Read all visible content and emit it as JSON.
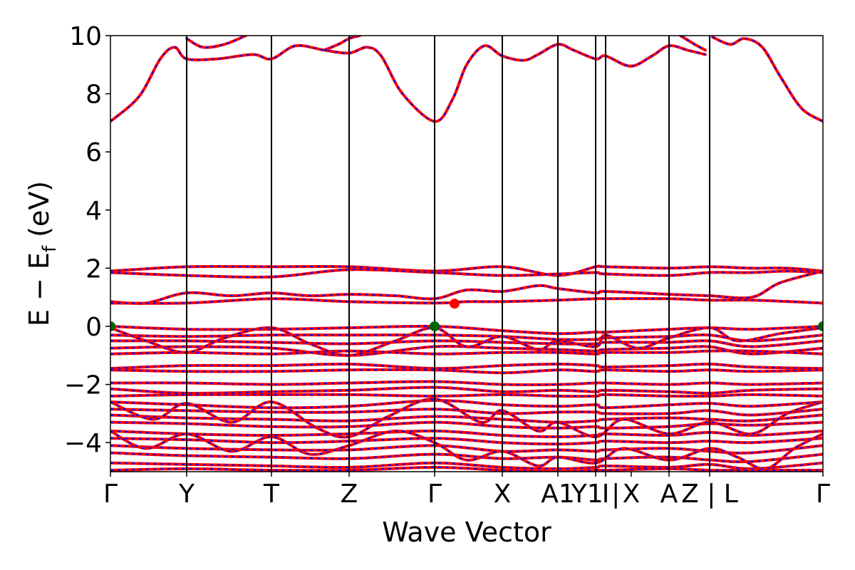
{
  "chart_data": {
    "type": "line",
    "title": "",
    "xlabel": "Wave Vector",
    "ylabel": "E − E_f (eV)",
    "ylabel_parts": {
      "main": "E − E",
      "sub": "f",
      "unit": " (eV)"
    },
    "ylim": [
      -5,
      10
    ],
    "yticks": [
      -4,
      -2,
      0,
      2,
      4,
      6,
      8,
      10
    ],
    "ytick_labels": [
      "−4",
      "−2",
      "0",
      "2",
      "4",
      "6",
      "8",
      "10"
    ],
    "grid": false,
    "legend": "none",
    "x_range": [
      0,
      1
    ],
    "kpoints": [
      {
        "label": "Γ",
        "x": 0.0
      },
      {
        "label": "Y",
        "x": 0.107
      },
      {
        "label": "T",
        "x": 0.226
      },
      {
        "label": "Z",
        "x": 0.335
      },
      {
        "label": "Γ",
        "x": 0.455
      },
      {
        "label": "X",
        "x": 0.55
      },
      {
        "label": "A1",
        "x": 0.628
      },
      {
        "label": "Y1 |",
        "x": 0.681
      },
      {
        "label": "I",
        "x": 0.695
      },
      {
        "label": "X",
        "x": 0.731
      },
      {
        "label": "A",
        "x": 0.784
      },
      {
        "label": "Z | L",
        "x": 0.841
      },
      {
        "label": "Γ",
        "x": 1.0
      }
    ],
    "kpoint_lines_x": [
      0.107,
      0.226,
      0.335,
      0.455,
      0.55,
      0.628,
      0.681,
      0.695,
      0.784,
      0.841
    ],
    "colors": {
      "band": "#ff0000",
      "band_dash": "#0000ff",
      "vbm": "#006400",
      "cbm": "#ff0000",
      "kline": "#000000"
    },
    "special_points": [
      {
        "name": "VBM",
        "x": 0.0,
        "y": 0.0,
        "color": "#006400"
      },
      {
        "name": "VBM",
        "x": 0.455,
        "y": 0.0,
        "color": "#006400"
      },
      {
        "name": "VBM",
        "x": 1.0,
        "y": 0.0,
        "color": "#006400"
      },
      {
        "name": "CBM",
        "x": 0.483,
        "y": 0.78,
        "color": "#ff0000"
      }
    ],
    "series": [
      {
        "band": "c1",
        "x": [
          0.0,
          0.04,
          0.07,
          0.09,
          0.107,
          0.15,
          0.2,
          0.226,
          0.26,
          0.3,
          0.335,
          0.36,
          0.38,
          0.41,
          0.455,
          0.48,
          0.5,
          0.525,
          0.55,
          0.58,
          0.6,
          0.628,
          0.65,
          0.681,
          0.695,
          0.73,
          0.76,
          0.784,
          0.81,
          0.835
        ],
        "y": [
          7.05,
          7.9,
          9.2,
          9.6,
          9.2,
          9.2,
          9.35,
          9.2,
          9.65,
          9.5,
          9.4,
          9.6,
          9.3,
          8.0,
          7.05,
          7.8,
          9.0,
          9.65,
          9.3,
          9.15,
          9.35,
          9.7,
          9.5,
          9.2,
          9.3,
          8.95,
          9.3,
          9.65,
          9.5,
          9.35
        ]
      },
      {
        "band": "c1b",
        "x": [
          0.845,
          0.87,
          0.89,
          0.915,
          0.94,
          0.97,
          1.0
        ],
        "y": [
          9.95,
          9.7,
          9.9,
          9.6,
          8.6,
          7.5,
          7.05
        ]
      },
      {
        "band": "c2",
        "x": [
          0.107,
          0.13,
          0.16,
          0.19
        ],
        "y": [
          9.9,
          9.6,
          9.7,
          10.0
        ]
      },
      {
        "band": "c3",
        "x": [
          0.3,
          0.32,
          0.335,
          0.35
        ],
        "y": [
          9.5,
          9.7,
          9.9,
          10.0
        ]
      },
      {
        "band": "c4",
        "x": [
          0.8,
          0.82,
          0.835
        ],
        "y": [
          10.0,
          9.7,
          9.5
        ]
      },
      {
        "band": "v-upper-1",
        "x": [
          0.0,
          0.107,
          0.226,
          0.335,
          0.455,
          0.55,
          0.628,
          0.681,
          0.695,
          0.784,
          0.841,
          0.9,
          0.95,
          1.0
        ],
        "y": [
          1.9,
          2.05,
          2.05,
          2.05,
          1.9,
          2.05,
          1.75,
          2.05,
          2.05,
          2.0,
          2.05,
          2.0,
          2.0,
          1.9
        ]
      },
      {
        "band": "v-upper-2",
        "x": [
          0.0,
          0.107,
          0.226,
          0.335,
          0.455,
          0.55,
          0.628,
          0.681,
          0.695,
          0.784,
          0.841,
          0.9,
          0.95,
          1.0
        ],
        "y": [
          1.85,
          1.75,
          1.7,
          1.95,
          1.85,
          1.75,
          1.8,
          1.85,
          1.8,
          1.75,
          1.85,
          1.85,
          1.9,
          1.85
        ]
      },
      {
        "band": "v-upper-3",
        "x": [
          0.0,
          0.05,
          0.107,
          0.17,
          0.226,
          0.28,
          0.335,
          0.4,
          0.455,
          0.5,
          0.55,
          0.6,
          0.628,
          0.681,
          0.695,
          0.784,
          0.841,
          0.9,
          0.94,
          1.0
        ],
        "y": [
          0.85,
          0.8,
          1.15,
          1.05,
          1.15,
          1.05,
          1.1,
          1.05,
          0.95,
          1.25,
          1.2,
          1.4,
          1.3,
          1.15,
          1.2,
          1.1,
          1.05,
          1.0,
          1.5,
          1.9
        ]
      },
      {
        "band": "v-upper-4",
        "x": [
          0.0,
          0.107,
          0.226,
          0.335,
          0.455,
          0.5,
          0.55,
          0.628,
          0.681,
          0.695,
          0.784,
          0.841,
          0.9,
          1.0
        ],
        "y": [
          0.8,
          0.8,
          0.95,
          0.85,
          0.8,
          0.85,
          0.85,
          0.9,
          0.95,
          0.95,
          0.95,
          0.9,
          0.9,
          0.8
        ]
      },
      {
        "band": "v0",
        "x": [
          0.0,
          0.107,
          0.226,
          0.335,
          0.455,
          0.55,
          0.628,
          0.681,
          0.695,
          0.784,
          0.841,
          0.9,
          1.0
        ],
        "y": [
          0.0,
          -0.1,
          -0.1,
          -0.05,
          0.0,
          -0.15,
          -0.25,
          -0.2,
          -0.2,
          -0.1,
          -0.05,
          -0.1,
          0.0
        ]
      },
      {
        "band": "v1",
        "x": [
          0.0,
          0.107,
          0.226,
          0.335,
          0.455,
          0.55,
          0.628,
          0.681,
          0.695,
          0.784,
          0.841,
          0.9,
          1.0
        ],
        "y": [
          -0.3,
          -0.35,
          -0.3,
          -0.3,
          -0.3,
          -0.35,
          -0.45,
          -0.45,
          -0.4,
          -0.35,
          -0.3,
          -0.5,
          -0.3
        ]
      },
      {
        "band": "v2",
        "x": [
          0.0,
          0.107,
          0.226,
          0.335,
          0.455,
          0.55,
          0.628,
          0.681,
          0.695,
          0.784,
          0.841,
          0.9,
          1.0
        ],
        "y": [
          -0.5,
          -0.5,
          -0.55,
          -0.6,
          -0.5,
          -0.55,
          -0.6,
          -0.6,
          -0.55,
          -0.55,
          -0.5,
          -0.7,
          -0.5
        ]
      },
      {
        "band": "v3",
        "x": [
          0.0,
          0.107,
          0.226,
          0.335,
          0.455,
          0.55,
          0.628,
          0.681,
          0.695,
          0.784,
          0.841,
          0.9,
          1.0
        ],
        "y": [
          -0.75,
          -0.7,
          -0.75,
          -1.0,
          -0.7,
          -0.75,
          -0.8,
          -0.85,
          -0.8,
          -0.75,
          -0.7,
          -0.95,
          -0.75
        ]
      },
      {
        "band": "v4",
        "x": [
          0.0,
          0.107,
          0.226,
          0.335,
          0.455,
          0.55,
          0.628,
          0.681,
          0.695,
          0.784,
          0.841,
          0.9,
          1.0
        ],
        "y": [
          -0.95,
          -0.9,
          -0.95,
          -0.85,
          -0.95,
          -0.9,
          -0.9,
          -0.95,
          -0.9,
          -0.9,
          -0.85,
          -0.85,
          -0.95
        ]
      },
      {
        "band": "v5",
        "x": [
          0.0,
          0.107,
          0.226,
          0.335,
          0.455,
          0.55,
          0.628,
          0.681,
          0.695,
          0.784,
          0.841,
          0.9,
          1.0
        ],
        "y": [
          -1.45,
          -1.35,
          -1.35,
          -1.3,
          -1.45,
          -1.35,
          -1.3,
          -1.35,
          -1.4,
          -1.35,
          -1.3,
          -1.4,
          -1.45
        ]
      },
      {
        "band": "v6",
        "x": [
          0.0,
          0.107,
          0.226,
          0.335,
          0.455,
          0.55,
          0.628,
          0.681,
          0.695,
          0.784,
          0.841,
          0.9,
          1.0
        ],
        "y": [
          -1.5,
          -1.55,
          -1.55,
          -1.5,
          -1.5,
          -1.6,
          -1.5,
          -1.55,
          -1.5,
          -1.55,
          -1.5,
          -1.55,
          -1.5
        ]
      },
      {
        "band": "v7",
        "x": [
          0.0,
          0.107,
          0.226,
          0.335,
          0.455,
          0.55,
          0.628,
          0.681,
          0.695,
          0.784,
          0.841,
          0.9,
          1.0
        ],
        "y": [
          -1.95,
          -1.95,
          -2.0,
          -1.95,
          -1.9,
          -2.0,
          -2.0,
          -1.95,
          -1.95,
          -2.0,
          -1.95,
          -2.0,
          -1.95
        ]
      },
      {
        "band": "v8",
        "x": [
          0.0,
          0.107,
          0.226,
          0.335,
          0.455,
          0.55,
          0.628,
          0.681,
          0.695,
          0.784,
          0.841,
          0.9,
          1.0
        ],
        "y": [
          -2.15,
          -2.3,
          -2.25,
          -2.2,
          -2.1,
          -2.25,
          -2.2,
          -2.25,
          -2.2,
          -2.25,
          -2.3,
          -2.2,
          -2.15
        ]
      },
      {
        "band": "v9",
        "x": [
          0.0,
          0.107,
          0.226,
          0.335,
          0.455,
          0.55,
          0.628,
          0.681,
          0.695,
          0.784,
          0.841,
          0.9,
          1.0
        ],
        "y": [
          -2.4,
          -2.35,
          -2.35,
          -2.35,
          -2.4,
          -2.35,
          -2.4,
          -2.4,
          -2.35,
          -2.4,
          -2.4,
          -2.35,
          -2.4
        ]
      },
      {
        "band": "v10",
        "x": [
          0.0,
          0.107,
          0.226,
          0.335,
          0.455,
          0.55,
          0.628,
          0.681,
          0.695,
          0.784,
          0.841,
          0.9,
          1.0
        ],
        "y": [
          -2.6,
          -2.7,
          -2.8,
          -2.75,
          -2.55,
          -2.7,
          -2.75,
          -2.7,
          -2.8,
          -2.7,
          -2.65,
          -2.75,
          -2.6
        ]
      },
      {
        "band": "v11",
        "x": [
          0.0,
          0.107,
          0.226,
          0.335,
          0.455,
          0.55,
          0.628,
          0.681,
          0.695,
          0.784,
          0.841,
          0.9,
          1.0
        ],
        "y": [
          -2.85,
          -2.9,
          -2.95,
          -2.95,
          -2.85,
          -3.0,
          -2.95,
          -2.95,
          -3.0,
          -3.0,
          -2.9,
          -3.05,
          -2.85
        ]
      },
      {
        "band": "v12",
        "x": [
          0.0,
          0.107,
          0.226,
          0.335,
          0.455,
          0.55,
          0.628,
          0.681,
          0.695,
          0.784,
          0.841,
          0.9,
          1.0
        ],
        "y": [
          -3.05,
          -3.15,
          -3.2,
          -3.25,
          -3.1,
          -3.2,
          -3.3,
          -3.25,
          -3.2,
          -3.15,
          -3.2,
          -3.25,
          -3.05
        ]
      },
      {
        "band": "v13",
        "x": [
          0.0,
          0.107,
          0.226,
          0.335,
          0.455,
          0.55,
          0.628,
          0.681,
          0.695,
          0.784,
          0.841,
          0.9,
          1.0
        ],
        "y": [
          -3.3,
          -3.35,
          -3.45,
          -3.45,
          -3.3,
          -3.45,
          -3.5,
          -3.45,
          -3.5,
          -3.45,
          -3.35,
          -3.4,
          -3.3
        ]
      },
      {
        "band": "v14",
        "x": [
          0.0,
          0.107,
          0.226,
          0.335,
          0.455,
          0.55,
          0.628,
          0.681,
          0.695,
          0.784,
          0.841,
          0.9,
          1.0
        ],
        "y": [
          -3.6,
          -3.7,
          -3.75,
          -3.7,
          -3.6,
          -3.75,
          -3.8,
          -3.75,
          -3.7,
          -3.75,
          -3.65,
          -3.75,
          -3.6
        ]
      },
      {
        "band": "v15",
        "x": [
          0.0,
          0.107,
          0.226,
          0.335,
          0.455,
          0.55,
          0.628,
          0.681,
          0.695,
          0.784,
          0.841,
          0.9,
          1.0
        ],
        "y": [
          -3.85,
          -3.9,
          -4.0,
          -3.95,
          -3.85,
          -4.0,
          -4.05,
          -4.0,
          -3.95,
          -4.0,
          -3.95,
          -4.0,
          -3.85
        ]
      },
      {
        "band": "v16",
        "x": [
          0.0,
          0.107,
          0.226,
          0.335,
          0.455,
          0.55,
          0.628,
          0.681,
          0.695,
          0.784,
          0.841,
          0.9,
          1.0
        ],
        "y": [
          -4.1,
          -4.2,
          -4.25,
          -4.25,
          -4.1,
          -4.3,
          -4.25,
          -4.3,
          -4.25,
          -4.2,
          -4.3,
          -4.35,
          -4.1
        ]
      },
      {
        "band": "v17",
        "x": [
          0.0,
          0.107,
          0.226,
          0.335,
          0.455,
          0.55,
          0.628,
          0.681,
          0.695,
          0.784,
          0.841,
          0.9,
          1.0
        ],
        "y": [
          -4.35,
          -4.45,
          -4.5,
          -4.55,
          -4.4,
          -4.55,
          -4.5,
          -4.6,
          -4.55,
          -4.5,
          -4.6,
          -4.65,
          -4.4
        ]
      },
      {
        "band": "v18",
        "x": [
          0.0,
          0.107,
          0.226,
          0.335,
          0.455,
          0.55,
          0.628,
          0.681,
          0.695,
          0.784,
          0.841,
          0.9,
          1.0
        ],
        "y": [
          -4.7,
          -4.75,
          -4.8,
          -4.85,
          -4.7,
          -4.85,
          -4.9,
          -4.85,
          -4.8,
          -4.85,
          -4.75,
          -4.9,
          -4.7
        ]
      },
      {
        "band": "v19",
        "x": [
          0.0,
          0.107,
          0.226,
          0.335,
          0.455,
          0.55,
          0.628,
          0.681,
          0.695,
          0.784,
          0.841,
          0.9,
          1.0
        ],
        "y": [
          -4.95,
          -4.9,
          -4.95,
          -4.95,
          -4.85,
          -4.95,
          -5.0,
          -4.95,
          -4.95,
          -4.9,
          -4.95,
          -4.95,
          -4.95
        ]
      },
      {
        "band": "v-cross-1",
        "x": [
          0.0,
          0.05,
          0.107,
          0.16,
          0.226,
          0.28,
          0.335,
          0.4,
          0.455,
          0.5,
          0.55,
          0.6,
          0.628,
          0.681,
          0.695,
          0.74,
          0.784,
          0.841,
          0.88,
          0.94,
          1.0
        ],
        "y": [
          -0.05,
          -0.5,
          -0.9,
          -0.4,
          -0.05,
          -0.6,
          -1.0,
          -0.5,
          -0.05,
          -0.7,
          -0.35,
          -0.8,
          -0.5,
          -0.7,
          -0.3,
          -0.75,
          -0.4,
          -0.05,
          -0.5,
          -0.25,
          -0.05
        ]
      },
      {
        "band": "v-cross-2",
        "x": [
          0.0,
          0.06,
          0.107,
          0.17,
          0.226,
          0.29,
          0.335,
          0.39,
          0.455,
          0.52,
          0.55,
          0.6,
          0.628,
          0.681,
          0.72,
          0.784,
          0.841,
          0.9,
          0.95,
          1.0
        ],
        "y": [
          -2.6,
          -3.2,
          -2.65,
          -3.3,
          -2.6,
          -3.5,
          -3.8,
          -3.1,
          -2.5,
          -3.3,
          -2.9,
          -3.6,
          -3.3,
          -3.8,
          -3.2,
          -3.7,
          -3.3,
          -3.7,
          -3.0,
          -2.6
        ]
      },
      {
        "band": "v-cross-3",
        "x": [
          0.0,
          0.05,
          0.107,
          0.17,
          0.226,
          0.28,
          0.335,
          0.4,
          0.455,
          0.5,
          0.55,
          0.6,
          0.628,
          0.681,
          0.72,
          0.784,
          0.841,
          0.88,
          0.92,
          0.96,
          1.0
        ],
        "y": [
          -3.6,
          -4.2,
          -3.7,
          -4.3,
          -3.8,
          -4.4,
          -4.1,
          -3.6,
          -4.0,
          -4.6,
          -4.3,
          -4.8,
          -4.5,
          -4.7,
          -4.2,
          -4.6,
          -4.2,
          -4.5,
          -4.9,
          -4.2,
          -3.7
        ]
      }
    ]
  }
}
